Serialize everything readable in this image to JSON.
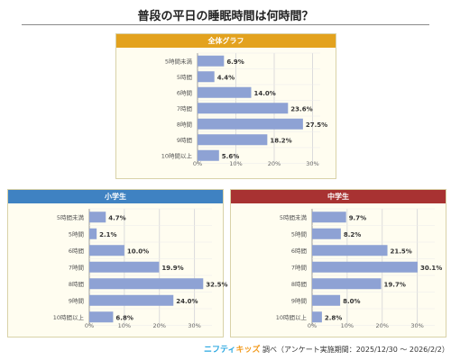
{
  "page": {
    "title": "普段の平日の睡眠時間は何時間？"
  },
  "footer": {
    "logo_part1": "ニフティ",
    "logo_part2": "キッズ",
    "text": " 調べ（アンケート実施期間：2025/12/30 ～ 2026/2/2）"
  },
  "colors": {
    "bar": "#8ea2d4",
    "overall_header": "#e3a21e",
    "elementary_header": "#3f82c2",
    "junior_header": "#a83232",
    "panel_bg": "#fffdf0"
  },
  "chart_data": [
    {
      "type": "bar",
      "orientation": "horizontal",
      "title": "全体グラフ",
      "categories": [
        "5時間未満",
        "5時間",
        "6時間",
        "7時間",
        "8時間",
        "9時間",
        "10時間以上"
      ],
      "values": [
        6.9,
        4.4,
        14.0,
        23.6,
        27.5,
        18.2,
        5.6
      ],
      "value_labels": [
        "6.9%",
        "4.4%",
        "14.0%",
        "23.6%",
        "27.5%",
        "18.2%",
        "5.6%"
      ],
      "xticks": [
        "0%",
        "10%",
        "20%",
        "30%"
      ],
      "xlim": [
        0,
        32
      ],
      "grid": true
    },
    {
      "type": "bar",
      "orientation": "horizontal",
      "title": "小学生",
      "categories": [
        "5時間未満",
        "5時間",
        "6時間",
        "7時間",
        "8時間",
        "9時間",
        "10時間以上"
      ],
      "values": [
        4.7,
        2.1,
        10.0,
        19.9,
        32.5,
        24.0,
        6.8
      ],
      "value_labels": [
        "4.7%",
        "2.1%",
        "10.0%",
        "19.9%",
        "32.5%",
        "24.0%",
        "6.8%"
      ],
      "xticks": [
        "0%",
        "10%",
        "20%",
        "30%"
      ],
      "xlim": [
        0,
        35
      ],
      "grid": true
    },
    {
      "type": "bar",
      "orientation": "horizontal",
      "title": "中学生",
      "categories": [
        "5時間未満",
        "5時間",
        "6時間",
        "7時間",
        "8時間",
        "9時間",
        "10時間以上"
      ],
      "values": [
        9.7,
        8.2,
        21.5,
        30.1,
        19.7,
        8.0,
        2.8
      ],
      "value_labels": [
        "9.7%",
        "8.2%",
        "21.5%",
        "30.1%",
        "19.7%",
        "8.0%",
        "2.8%"
      ],
      "xticks": [
        "0%",
        "10%",
        "20%",
        "30%"
      ],
      "xlim": [
        0,
        35
      ],
      "grid": true
    }
  ]
}
